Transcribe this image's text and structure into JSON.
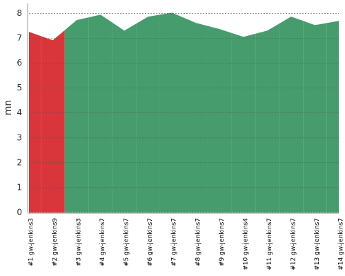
{
  "chart_data": {
    "type": "area",
    "y_label": "mn",
    "categories": [
      "#1 gw-jenkins3",
      "#2 gw-jenkins9",
      "#3 gw-jenkins3",
      "#4 gw-jenkins7",
      "#5 gw-jenkins7",
      "#6 gw-jenkins7",
      "#7 gw-jenkins7",
      "#8 gw-jenkins7",
      "#9 gw-jenkins7",
      "#10 gw-jenkins4",
      "#11 gw-jenkins7",
      "#12 gw-jenkins7",
      "#13 gw-jenkins7",
      "#14 gw-jenkins7"
    ],
    "values": [
      7.26,
      6.92,
      7.73,
      7.95,
      7.31,
      7.87,
      8.03,
      7.62,
      7.37,
      7.06,
      7.31,
      7.87,
      7.53,
      7.7
    ],
    "colors": [
      "#d8363a",
      "#d8363a",
      "#469c6d",
      "#469c6d",
      "#469c6d",
      "#469c6d",
      "#469c6d",
      "#469c6d",
      "#469c6d",
      "#469c6d",
      "#469c6d",
      "#469c6d",
      "#469c6d",
      "#469c6d"
    ],
    "ylim": [
      0,
      8.4
    ],
    "yticks": [
      0,
      1,
      2,
      3,
      4,
      5,
      6,
      7,
      8
    ],
    "grid": true
  }
}
